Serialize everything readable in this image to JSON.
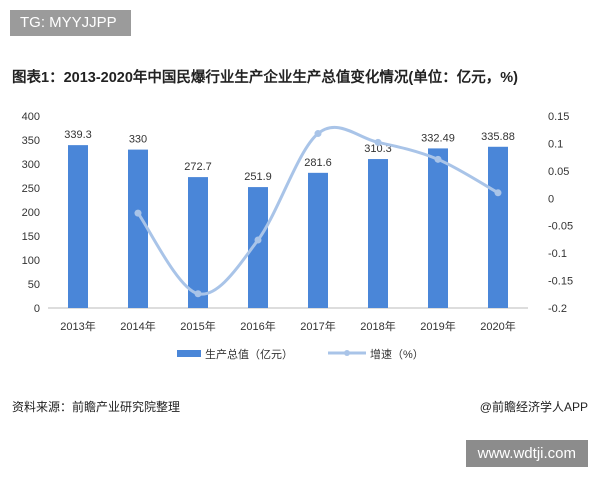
{
  "tag": "TG: MYYJJPP",
  "watermark": "www.wdtji.com",
  "source": "资料来源：前瞻产业研究院整理",
  "brand": "@前瞻经济学人APP",
  "chart_data": {
    "type": "bar+line",
    "title": "图表1：2013-2020年中国民爆行业生产企业生产总值变化情况(单位：亿元，%)",
    "categories": [
      "2013年",
      "2014年",
      "2015年",
      "2016年",
      "2017年",
      "2018年",
      "2019年",
      "2020年"
    ],
    "series": [
      {
        "name": "生产总值（亿元）",
        "type": "bar",
        "axis": "left",
        "color": "#4a86d8",
        "values": [
          339.3,
          330,
          272.7,
          251.9,
          281.6,
          310.3,
          332.49,
          335.88
        ],
        "labels": [
          "339.3",
          "330",
          "272.7",
          "251.9",
          "281.6",
          "310.3",
          "332.49",
          "335.88"
        ]
      },
      {
        "name": "增速（%）",
        "type": "line",
        "axis": "right",
        "color": "#a9c4e8",
        "values": [
          null,
          -0.027,
          -0.174,
          -0.076,
          0.118,
          0.102,
          0.071,
          0.01
        ]
      }
    ],
    "y_left": {
      "range": [
        0,
        400
      ],
      "ticks": [
        "0",
        "50",
        "100",
        "150",
        "200",
        "250",
        "300",
        "350",
        "400"
      ]
    },
    "y_right": {
      "range": [
        -0.2,
        0.15
      ],
      "ticks": [
        "-0.2",
        "-0.15",
        "-0.1",
        "-0.05",
        "0",
        "0.05",
        "0.1",
        "0.15"
      ]
    },
    "grid": false,
    "legend": "bottom"
  }
}
